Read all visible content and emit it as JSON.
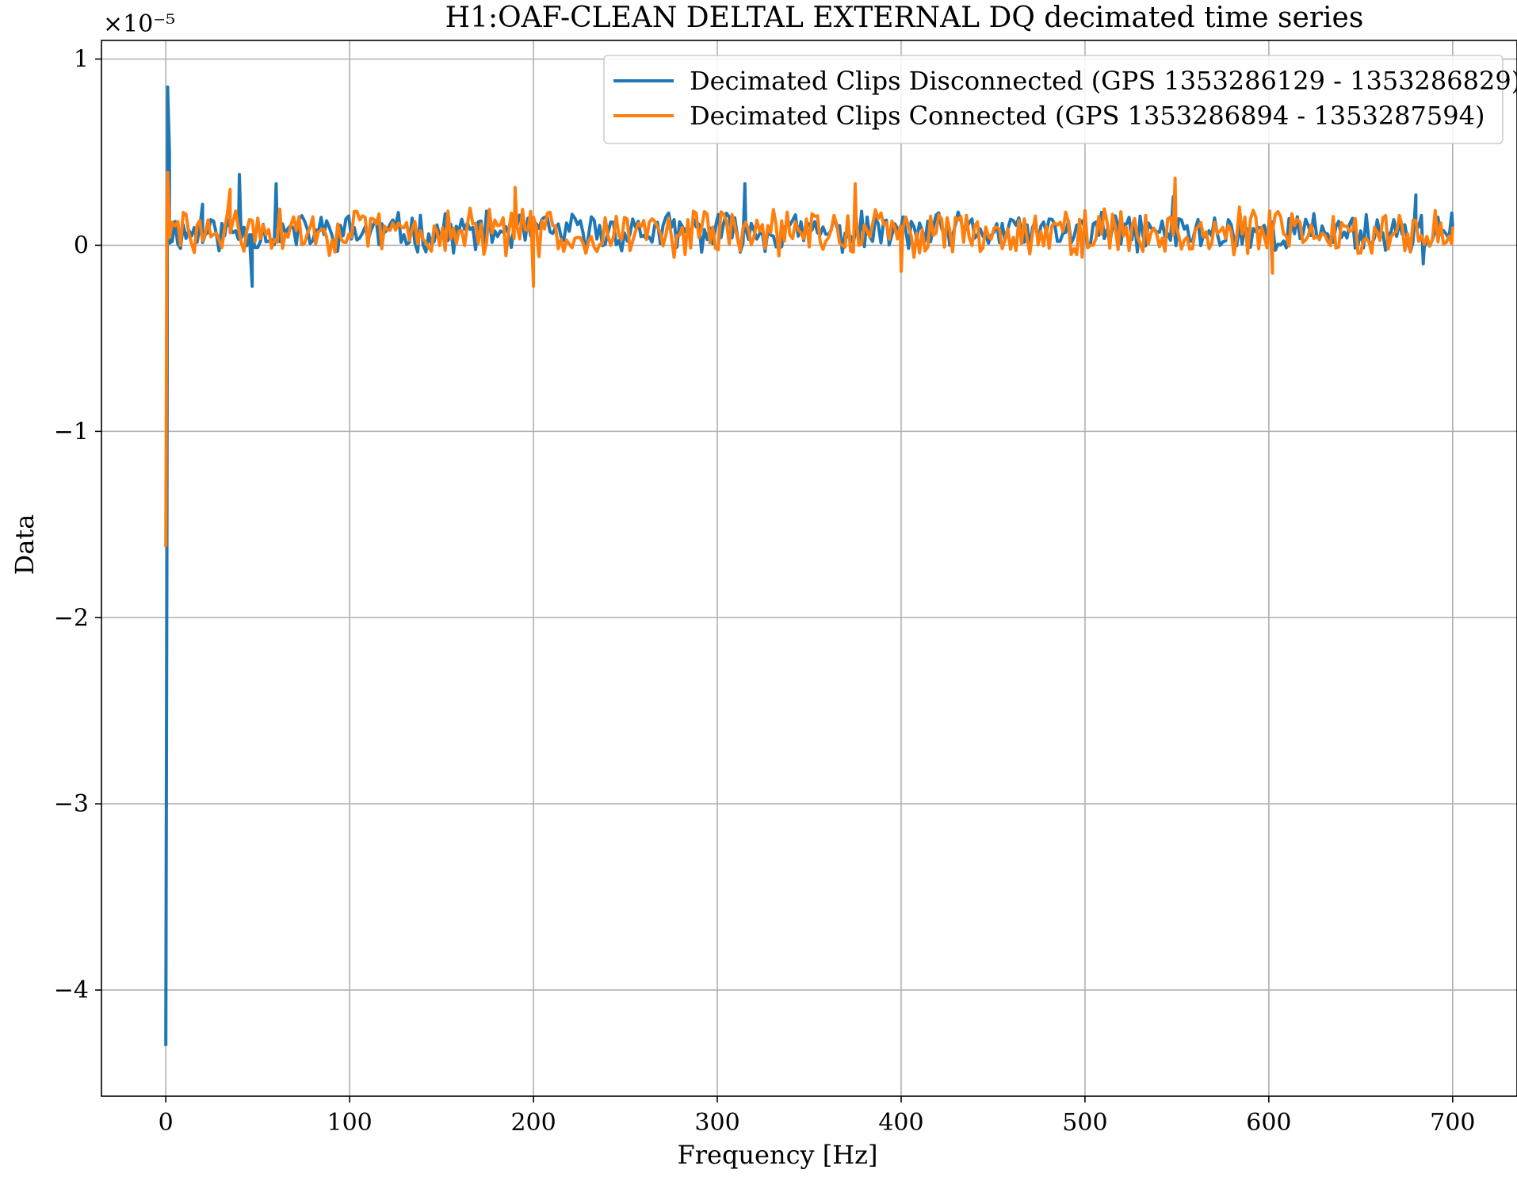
{
  "chart_data": {
    "type": "line",
    "title": "H1:OAF-CLEAN DELTAL EXTERNAL DQ decimated time series",
    "xlabel": "Frequency [Hz]",
    "ylabel": "Data",
    "y_scale_label": "×10⁻⁵",
    "y_scale_factor": 1e-05,
    "xlim": [
      -35,
      735
    ],
    "ylim": [
      -4.57,
      1.1
    ],
    "x_ticks": [
      0,
      100,
      200,
      300,
      400,
      500,
      600,
      700
    ],
    "x_tick_labels": [
      "0",
      "100",
      "200",
      "300",
      "400",
      "500",
      "600",
      "700"
    ],
    "y_ticks": [
      1,
      0,
      -1,
      -2,
      -3,
      -4
    ],
    "y_tick_labels": [
      "1",
      "0",
      "−1",
      "−2",
      "−3",
      "−4"
    ],
    "grid": true,
    "legend_position": "top-right",
    "series": [
      {
        "name": "Decimated Clips Disconnected (GPS 1353286129 - 1353286829)",
        "color": "#1f77b4",
        "noise": {
          "x_start": 2,
          "x_end": 700,
          "dx": 1.5,
          "mean": 0.07,
          "amp": 0.09,
          "seed": 11
        },
        "points": [
          {
            "x": 0,
            "y": -4.3
          },
          {
            "x": 0.6,
            "y": -1.6
          },
          {
            "x": 1,
            "y": 0.85
          },
          {
            "x": 2,
            "y": 0.5
          },
          {
            "x": 20,
            "y": 0.22
          },
          {
            "x": 40,
            "y": 0.38
          },
          {
            "x": 47,
            "y": -0.22
          },
          {
            "x": 60,
            "y": 0.33
          },
          {
            "x": 315,
            "y": 0.33
          },
          {
            "x": 548,
            "y": 0.26
          },
          {
            "x": 680,
            "y": 0.27
          },
          {
            "x": 684,
            "y": -0.1
          },
          {
            "x": 700,
            "y": 0.1
          }
        ]
      },
      {
        "name": "Decimated Clips Connected (GPS 1353286894 - 1353287594)",
        "color": "#ff7f0e",
        "noise": {
          "x_start": 2,
          "x_end": 700,
          "dx": 1.5,
          "mean": 0.07,
          "amp": 0.11,
          "seed": 29
        },
        "points": [
          {
            "x": 0,
            "y": -1.62
          },
          {
            "x": 0.6,
            "y": 0.1
          },
          {
            "x": 1,
            "y": 0.39
          },
          {
            "x": 2,
            "y": 0.1
          },
          {
            "x": 35,
            "y": 0.3
          },
          {
            "x": 190,
            "y": 0.31
          },
          {
            "x": 200,
            "y": -0.22
          },
          {
            "x": 375,
            "y": 0.33
          },
          {
            "x": 400,
            "y": -0.14
          },
          {
            "x": 549,
            "y": 0.36
          },
          {
            "x": 602,
            "y": -0.15
          },
          {
            "x": 700,
            "y": 0.1
          }
        ]
      }
    ]
  }
}
